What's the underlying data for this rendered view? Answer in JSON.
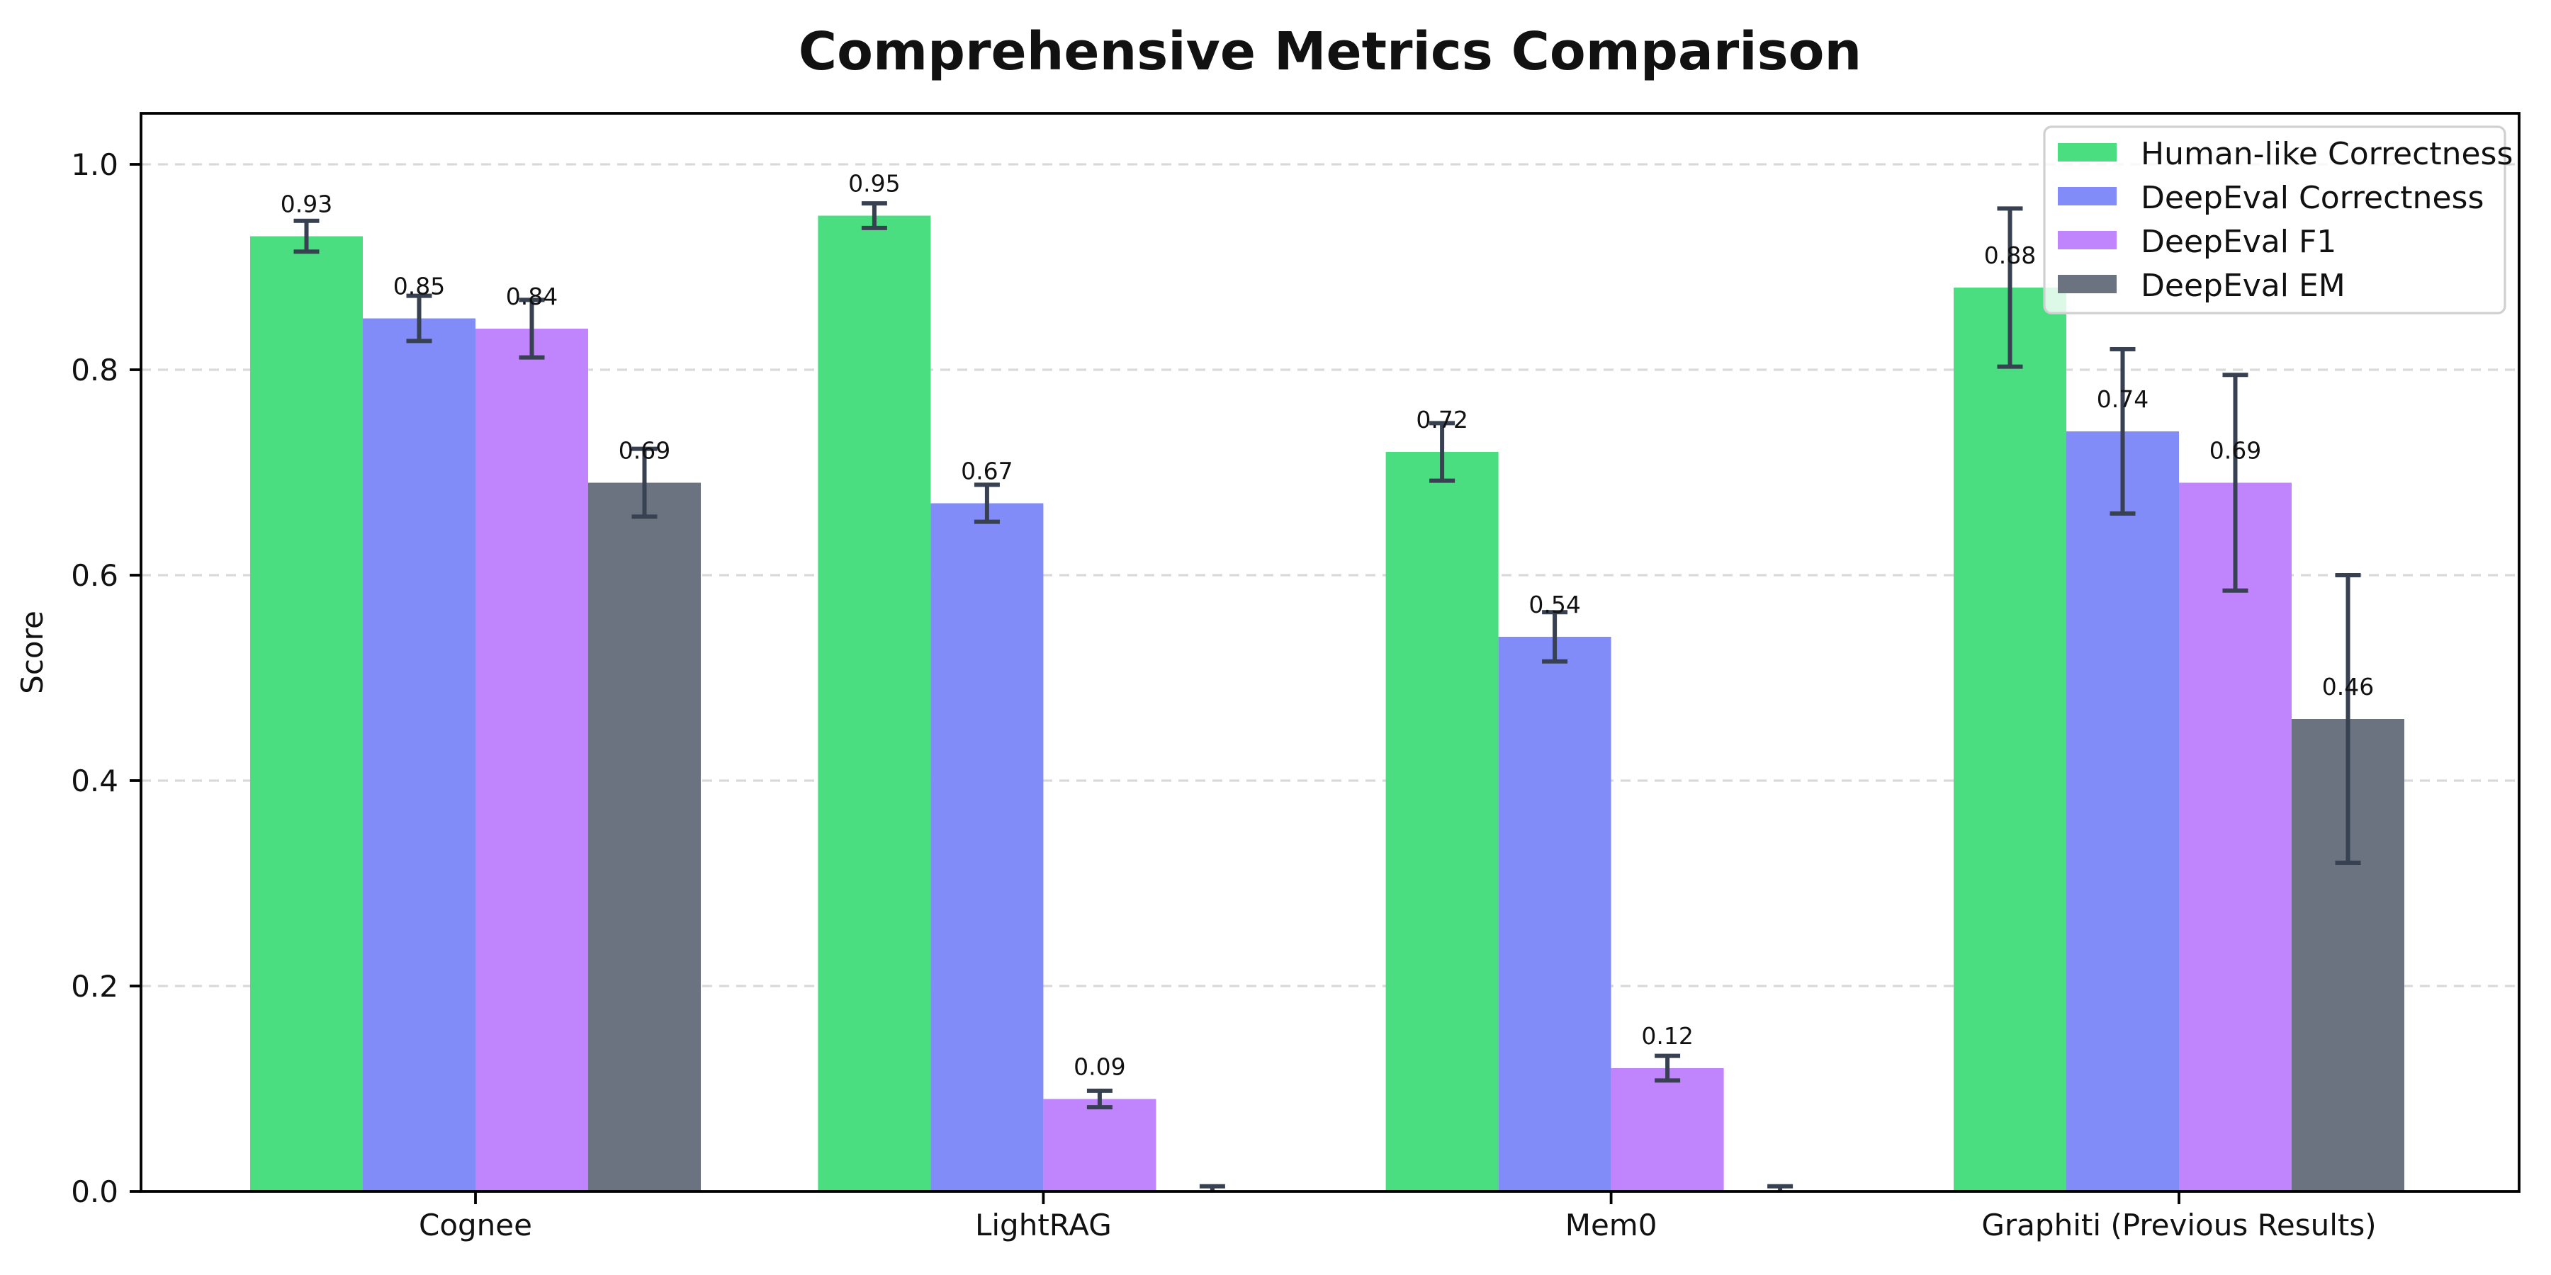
{
  "chart_data": {
    "type": "bar",
    "title": "Comprehensive Metrics Comparison",
    "xlabel": "",
    "ylabel": "Score",
    "categories": [
      "Cognee",
      "LightRAG",
      "Mem0",
      "Graphiti (Previous Results)"
    ],
    "series": [
      {
        "name": "Human-like Correctness",
        "color": "#4ade80",
        "values": [
          0.93,
          0.95,
          0.72,
          0.88
        ],
        "errors": [
          0.015,
          0.012,
          0.028,
          0.077
        ],
        "labels": [
          "0.93",
          "0.95",
          "0.72",
          "0.88"
        ]
      },
      {
        "name": "DeepEval Correctness",
        "color": "#818cf8",
        "values": [
          0.85,
          0.67,
          0.54,
          0.74
        ],
        "errors": [
          0.022,
          0.018,
          0.024,
          0.08
        ],
        "labels": [
          "0.85",
          "0.67",
          "0.54",
          "0.74"
        ]
      },
      {
        "name": "DeepEval F1",
        "color": "#c084fc",
        "values": [
          0.84,
          0.09,
          0.12,
          0.69
        ],
        "errors": [
          0.028,
          0.008,
          0.012,
          0.105
        ],
        "labels": [
          "0.84",
          "0.09",
          "0.12",
          "0.69"
        ]
      },
      {
        "name": "DeepEval EM",
        "color": "#6b7280",
        "values": [
          0.69,
          0.0,
          0.0,
          0.46
        ],
        "errors": [
          0.033,
          0.005,
          0.005,
          0.14
        ],
        "labels": [
          "0.69",
          "",
          "",
          "0.46"
        ]
      }
    ],
    "ylim": [
      0.0,
      1.05
    ],
    "yticks": [
      0.0,
      0.2,
      0.4,
      0.6,
      0.8,
      1.0
    ],
    "ytick_labels": [
      "0.0",
      "0.2",
      "0.4",
      "0.6",
      "0.8",
      "1.0"
    ],
    "grid": "horizontal dashed",
    "legend_position": "upper right",
    "colors": {
      "error_bar": "#374151",
      "grid_line": "#d9d9d9",
      "axis": "#000000",
      "text": "#111111",
      "legend_border": "#d0d0d0",
      "legend_fill": "#ffffff",
      "background": "#ffffff"
    }
  }
}
